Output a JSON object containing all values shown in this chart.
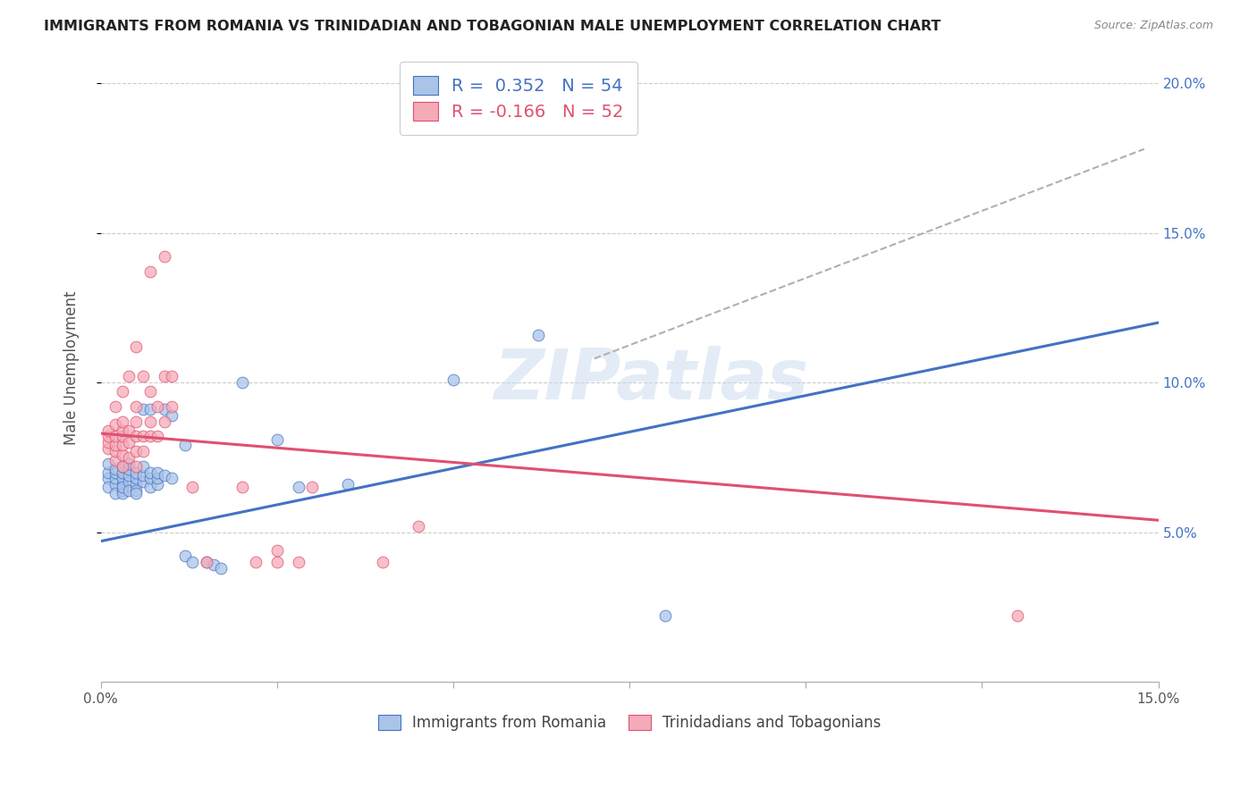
{
  "title": "IMMIGRANTS FROM ROMANIA VS TRINIDADIAN AND TOBAGONIAN MALE UNEMPLOYMENT CORRELATION CHART",
  "source": "Source: ZipAtlas.com",
  "ylabel": "Male Unemployment",
  "legend_label1": "Immigrants from Romania",
  "legend_label2": "Trinidadians and Tobagonians",
  "r1": 0.352,
  "n1": 54,
  "r2": -0.166,
  "n2": 52,
  "xmin": 0.0,
  "xmax": 0.15,
  "ymin": 0.0,
  "ymax": 0.21,
  "yticks": [
    0.05,
    0.1,
    0.15,
    0.2
  ],
  "xtick_positions": [
    0.0,
    0.025,
    0.05,
    0.075,
    0.1,
    0.125,
    0.15
  ],
  "xtick_labels": [
    "0.0%",
    "",
    "",
    "",
    "",
    "",
    "15.0%"
  ],
  "ytick_labels_right": [
    "5.0%",
    "10.0%",
    "15.0%",
    "20.0%"
  ],
  "color_blue": "#aac4e8",
  "color_pink": "#f5aab8",
  "trend_blue": "#4472c4",
  "trend_pink": "#e05070",
  "trend_dashed_color": "#b0b0b0",
  "watermark": "ZIPatlas",
  "blue_scatter": [
    [
      0.001,
      0.068
    ],
    [
      0.001,
      0.07
    ],
    [
      0.001,
      0.073
    ],
    [
      0.001,
      0.065
    ],
    [
      0.002,
      0.066
    ],
    [
      0.002,
      0.068
    ],
    [
      0.002,
      0.07
    ],
    [
      0.002,
      0.063
    ],
    [
      0.002,
      0.071
    ],
    [
      0.003,
      0.064
    ],
    [
      0.003,
      0.066
    ],
    [
      0.003,
      0.068
    ],
    [
      0.003,
      0.07
    ],
    [
      0.003,
      0.063
    ],
    [
      0.003,
      0.072
    ],
    [
      0.003,
      0.065
    ],
    [
      0.004,
      0.067
    ],
    [
      0.004,
      0.069
    ],
    [
      0.004,
      0.064
    ],
    [
      0.004,
      0.071
    ],
    [
      0.004,
      0.073
    ],
    [
      0.005,
      0.066
    ],
    [
      0.005,
      0.068
    ],
    [
      0.005,
      0.064
    ],
    [
      0.005,
      0.07
    ],
    [
      0.005,
      0.063
    ],
    [
      0.006,
      0.067
    ],
    [
      0.006,
      0.069
    ],
    [
      0.006,
      0.072
    ],
    [
      0.006,
      0.091
    ],
    [
      0.007,
      0.065
    ],
    [
      0.007,
      0.068
    ],
    [
      0.007,
      0.07
    ],
    [
      0.007,
      0.091
    ],
    [
      0.008,
      0.066
    ],
    [
      0.008,
      0.068
    ],
    [
      0.008,
      0.07
    ],
    [
      0.009,
      0.069
    ],
    [
      0.009,
      0.091
    ],
    [
      0.01,
      0.068
    ],
    [
      0.01,
      0.089
    ],
    [
      0.012,
      0.079
    ],
    [
      0.012,
      0.042
    ],
    [
      0.013,
      0.04
    ],
    [
      0.015,
      0.04
    ],
    [
      0.016,
      0.039
    ],
    [
      0.017,
      0.038
    ],
    [
      0.02,
      0.1
    ],
    [
      0.025,
      0.081
    ],
    [
      0.028,
      0.065
    ],
    [
      0.035,
      0.066
    ],
    [
      0.05,
      0.101
    ],
    [
      0.062,
      0.116
    ],
    [
      0.08,
      0.022
    ]
  ],
  "pink_scatter": [
    [
      0.001,
      0.078
    ],
    [
      0.001,
      0.08
    ],
    [
      0.001,
      0.082
    ],
    [
      0.001,
      0.084
    ],
    [
      0.002,
      0.074
    ],
    [
      0.002,
      0.077
    ],
    [
      0.002,
      0.079
    ],
    [
      0.002,
      0.082
    ],
    [
      0.002,
      0.086
    ],
    [
      0.002,
      0.092
    ],
    [
      0.003,
      0.072
    ],
    [
      0.003,
      0.076
    ],
    [
      0.003,
      0.079
    ],
    [
      0.003,
      0.082
    ],
    [
      0.003,
      0.084
    ],
    [
      0.003,
      0.087
    ],
    [
      0.003,
      0.097
    ],
    [
      0.004,
      0.075
    ],
    [
      0.004,
      0.08
    ],
    [
      0.004,
      0.084
    ],
    [
      0.004,
      0.102
    ],
    [
      0.005,
      0.072
    ],
    [
      0.005,
      0.077
    ],
    [
      0.005,
      0.082
    ],
    [
      0.005,
      0.087
    ],
    [
      0.005,
      0.092
    ],
    [
      0.005,
      0.112
    ],
    [
      0.006,
      0.077
    ],
    [
      0.006,
      0.082
    ],
    [
      0.006,
      0.102
    ],
    [
      0.007,
      0.082
    ],
    [
      0.007,
      0.087
    ],
    [
      0.007,
      0.097
    ],
    [
      0.007,
      0.137
    ],
    [
      0.008,
      0.082
    ],
    [
      0.008,
      0.092
    ],
    [
      0.009,
      0.087
    ],
    [
      0.009,
      0.102
    ],
    [
      0.009,
      0.142
    ],
    [
      0.01,
      0.092
    ],
    [
      0.01,
      0.102
    ],
    [
      0.013,
      0.065
    ],
    [
      0.015,
      0.04
    ],
    [
      0.02,
      0.065
    ],
    [
      0.022,
      0.04
    ],
    [
      0.025,
      0.04
    ],
    [
      0.025,
      0.044
    ],
    [
      0.028,
      0.04
    ],
    [
      0.03,
      0.065
    ],
    [
      0.04,
      0.04
    ],
    [
      0.045,
      0.052
    ],
    [
      0.13,
      0.022
    ]
  ],
  "blue_trend_x": [
    0.0,
    0.15
  ],
  "blue_trend_y": [
    0.047,
    0.12
  ],
  "pink_trend_x": [
    0.0,
    0.15
  ],
  "pink_trend_y": [
    0.083,
    0.054
  ],
  "dashed_trend_x": [
    0.07,
    0.148
  ],
  "dashed_trend_y": [
    0.108,
    0.178
  ]
}
